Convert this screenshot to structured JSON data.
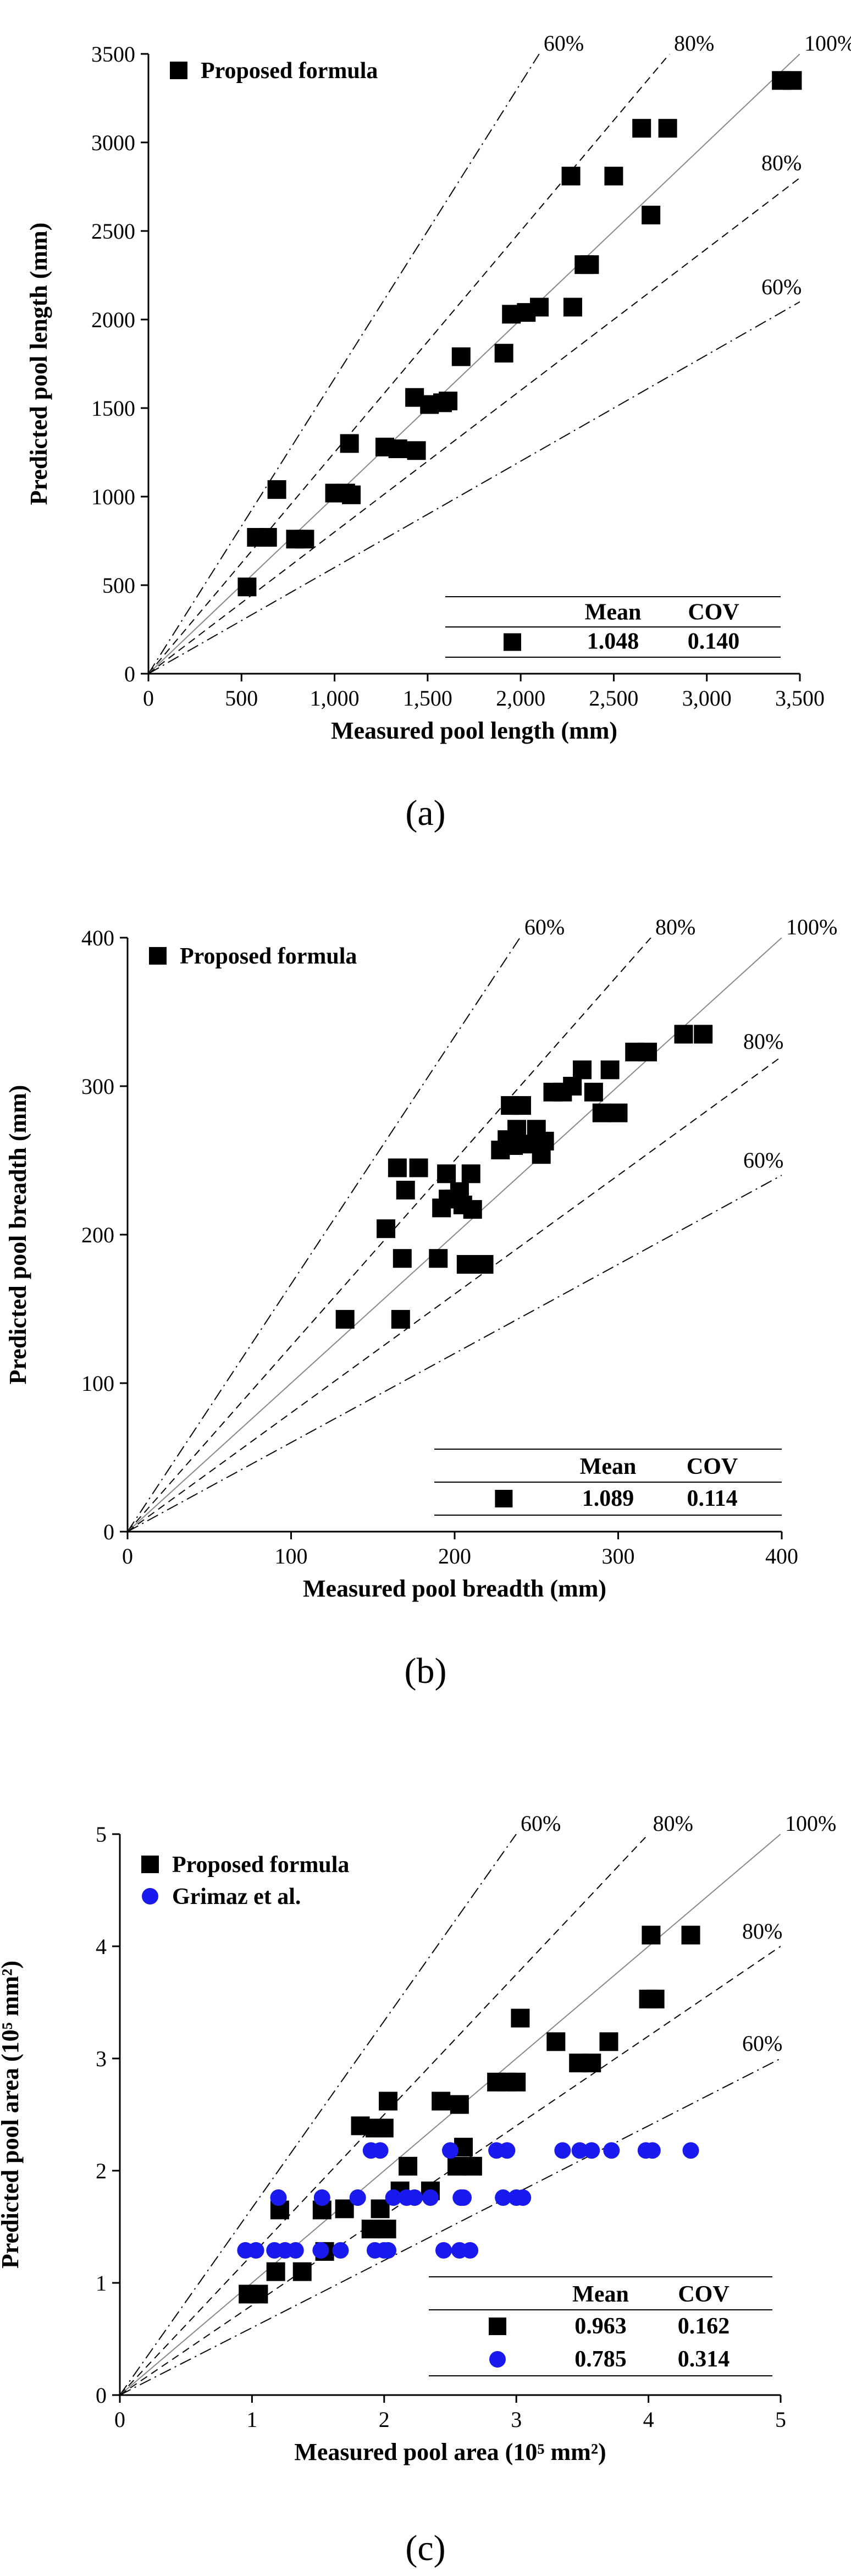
{
  "chart_data": [
    {
      "id": "a",
      "type": "scatter",
      "panel_label": "(a)",
      "xlabel": "Measured pool length (mm)",
      "ylabel": "Predicted pool length (mm)",
      "xlim": [
        0,
        3500
      ],
      "ylim": [
        0,
        3500
      ],
      "xticks": [
        0,
        500,
        1000,
        1500,
        2000,
        2500,
        3000,
        3500
      ],
      "xtick_labels": [
        "0",
        "500",
        "1,000",
        "1,500",
        "2,000",
        "2,500",
        "3,000",
        "3,500"
      ],
      "yticks": [
        0,
        500,
        1000,
        1500,
        2000,
        2500,
        3000,
        3500
      ],
      "ytick_labels": [
        "0",
        "500",
        "1000",
        "1500",
        "2000",
        "2500",
        "3000",
        "3500"
      ],
      "reference_lines": [
        {
          "label": "60%",
          "slope": 1.667,
          "style": "dashdot"
        },
        {
          "label": "80%",
          "slope": 1.25,
          "style": "dashed"
        },
        {
          "label": "100%",
          "slope": 1.0,
          "style": "solid"
        },
        {
          "label": "80%",
          "slope": 0.8,
          "style": "dashed"
        },
        {
          "label": "60%",
          "slope": 0.6,
          "style": "dashdot"
        }
      ],
      "series": [
        {
          "name": "Proposed formula",
          "marker": "square",
          "color": "#000000",
          "points": [
            [
              530,
              490
            ],
            [
              580,
              770
            ],
            [
              640,
              770
            ],
            [
              690,
              1040
            ],
            [
              790,
              760
            ],
            [
              840,
              760
            ],
            [
              1000,
              1020
            ],
            [
              1060,
              1020
            ],
            [
              1080,
              1300
            ],
            [
              1090,
              1010
            ],
            [
              1270,
              1280
            ],
            [
              1340,
              1270
            ],
            [
              1430,
              1560
            ],
            [
              1440,
              1260
            ],
            [
              1510,
              1520
            ],
            [
              1580,
              1530
            ],
            [
              1610,
              1540
            ],
            [
              1680,
              1790
            ],
            [
              1910,
              1810
            ],
            [
              1950,
              2030
            ],
            [
              2030,
              2040
            ],
            [
              2100,
              2070
            ],
            [
              2270,
              2810
            ],
            [
              2280,
              2070
            ],
            [
              2340,
              2310
            ],
            [
              2370,
              2310
            ],
            [
              2500,
              2810
            ],
            [
              2650,
              3080
            ],
            [
              2700,
              2590
            ],
            [
              2790,
              3080
            ],
            [
              3400,
              3350
            ],
            [
              3460,
              3350
            ]
          ]
        }
      ],
      "stats_table": {
        "headers": [
          "Mean",
          "COV"
        ],
        "rows": [
          {
            "marker": "square",
            "color": "#000000",
            "mean": "1.048",
            "cov": "0.140"
          }
        ]
      }
    },
    {
      "id": "b",
      "type": "scatter",
      "panel_label": "(b)",
      "xlabel": "Measured pool breadth (mm)",
      "ylabel": "Predicted pool breadth (mm)",
      "xlim": [
        0,
        400
      ],
      "ylim": [
        0,
        400
      ],
      "xticks": [
        0,
        100,
        200,
        300,
        400
      ],
      "xtick_labels": [
        "0",
        "100",
        "200",
        "300",
        "400"
      ],
      "yticks": [
        0,
        100,
        200,
        300,
        400
      ],
      "ytick_labels": [
        "0",
        "100",
        "200",
        "300",
        "400"
      ],
      "reference_lines": [
        {
          "label": "60%",
          "slope": 1.667,
          "style": "dashdot"
        },
        {
          "label": "80%",
          "slope": 1.25,
          "style": "dashed"
        },
        {
          "label": "100%",
          "slope": 1.0,
          "style": "solid"
        },
        {
          "label": "80%",
          "slope": 0.8,
          "style": "dashed"
        },
        {
          "label": "60%",
          "slope": 0.6,
          "style": "dashdot"
        }
      ],
      "series": [
        {
          "name": "Proposed formula",
          "marker": "square",
          "color": "#000000",
          "points": [
            [
              133,
              143
            ],
            [
              158,
              204
            ],
            [
              165,
              245
            ],
            [
              167,
              143
            ],
            [
              168,
              184
            ],
            [
              170,
              230
            ],
            [
              178,
              245
            ],
            [
              190,
              184
            ],
            [
              192,
              218
            ],
            [
              195,
              241
            ],
            [
              196,
              224
            ],
            [
              200,
              224
            ],
            [
              203,
              229
            ],
            [
              205,
              220
            ],
            [
              207,
              180
            ],
            [
              210,
              241
            ],
            [
              211,
              217
            ],
            [
              218,
              180
            ],
            [
              228,
              257
            ],
            [
              232,
              264
            ],
            [
              234,
              287
            ],
            [
              236,
              260
            ],
            [
              238,
              271
            ],
            [
              241,
              287
            ],
            [
              247,
              261
            ],
            [
              250,
              271
            ],
            [
              253,
              254
            ],
            [
              255,
              263
            ],
            [
              260,
              296
            ],
            [
              266,
              296
            ],
            [
              272,
              300
            ],
            [
              278,
              311
            ],
            [
              285,
              296
            ],
            [
              290,
              282
            ],
            [
              295,
              311
            ],
            [
              300,
              282
            ],
            [
              310,
              323
            ],
            [
              318,
              323
            ],
            [
              340,
              335
            ],
            [
              352,
              335
            ]
          ]
        }
      ],
      "stats_table": {
        "headers": [
          "Mean",
          "COV"
        ],
        "rows": [
          {
            "marker": "square",
            "color": "#000000",
            "mean": "1.089",
            "cov": "0.114"
          }
        ]
      }
    },
    {
      "id": "c",
      "type": "scatter",
      "panel_label": "(c)",
      "xlabel": "Measured pool area (10⁵ mm²)",
      "ylabel": "Predicted pool area (10⁵ mm²)",
      "xlim": [
        0,
        5
      ],
      "ylim": [
        0,
        5
      ],
      "xticks": [
        0,
        1,
        2,
        3,
        4,
        5
      ],
      "xtick_labels": [
        "0",
        "1",
        "2",
        "3",
        "4",
        "5"
      ],
      "yticks": [
        0,
        1,
        2,
        3,
        4,
        5
      ],
      "ytick_labels": [
        "0",
        "1",
        "2",
        "3",
        "4",
        "5"
      ],
      "reference_lines": [
        {
          "label": "60%",
          "slope": 1.667,
          "style": "dashdot"
        },
        {
          "label": "80%",
          "slope": 1.25,
          "style": "dashed"
        },
        {
          "label": "100%",
          "slope": 1.0,
          "style": "solid"
        },
        {
          "label": "80%",
          "slope": 0.8,
          "style": "dashed"
        },
        {
          "label": "60%",
          "slope": 0.6,
          "style": "dashdot"
        }
      ],
      "series": [
        {
          "name": "Proposed formula",
          "marker": "square",
          "color": "#000000",
          "points": [
            [
              0.97,
              0.9
            ],
            [
              1.05,
              0.9
            ],
            [
              1.18,
              1.1
            ],
            [
              1.21,
              1.65
            ],
            [
              1.38,
              1.1
            ],
            [
              1.55,
              1.28
            ],
            [
              1.53,
              1.65
            ],
            [
              1.7,
              1.66
            ],
            [
              1.82,
              2.4
            ],
            [
              1.9,
              1.48
            ],
            [
              1.93,
              2.38
            ],
            [
              1.97,
              1.66
            ],
            [
              2.0,
              2.38
            ],
            [
              2.02,
              1.48
            ],
            [
              2.03,
              2.62
            ],
            [
              2.12,
              1.82
            ],
            [
              2.18,
              2.04
            ],
            [
              2.35,
              1.82
            ],
            [
              2.43,
              2.62
            ],
            [
              2.55,
              2.04
            ],
            [
              2.57,
              2.59
            ],
            [
              2.6,
              2.21
            ],
            [
              2.67,
              2.04
            ],
            [
              2.85,
              2.79
            ],
            [
              2.93,
              2.79
            ],
            [
              3.0,
              2.79
            ],
            [
              3.03,
              3.36
            ],
            [
              3.3,
              3.15
            ],
            [
              3.47,
              2.96
            ],
            [
              3.57,
              2.96
            ],
            [
              3.7,
              3.15
            ],
            [
              4.0,
              3.53
            ],
            [
              4.02,
              4.1
            ],
            [
              4.05,
              3.53
            ],
            [
              4.32,
              4.1
            ]
          ]
        },
        {
          "name": "Grimaz et al.",
          "marker": "circle",
          "color": "#1a1aee",
          "points": [
            [
              0.95,
              1.29
            ],
            [
              1.03,
              1.29
            ],
            [
              1.17,
              1.29
            ],
            [
              1.2,
              1.76
            ],
            [
              1.25,
              1.29
            ],
            [
              1.33,
              1.29
            ],
            [
              1.52,
              1.29
            ],
            [
              1.53,
              1.76
            ],
            [
              1.67,
              1.29
            ],
            [
              1.8,
              1.76
            ],
            [
              1.9,
              2.18
            ],
            [
              1.93,
              1.29
            ],
            [
              1.97,
              2.18
            ],
            [
              2.0,
              1.29
            ],
            [
              2.03,
              1.29
            ],
            [
              2.07,
              1.76
            ],
            [
              2.17,
              1.76
            ],
            [
              2.23,
              1.76
            ],
            [
              2.35,
              1.76
            ],
            [
              2.45,
              1.29
            ],
            [
              2.5,
              2.18
            ],
            [
              2.57,
              1.29
            ],
            [
              2.58,
              1.76
            ],
            [
              2.6,
              1.76
            ],
            [
              2.65,
              1.29
            ],
            [
              2.85,
              2.18
            ],
            [
              2.9,
              1.76
            ],
            [
              2.93,
              2.18
            ],
            [
              3.0,
              1.76
            ],
            [
              3.05,
              1.76
            ],
            [
              3.35,
              2.18
            ],
            [
              3.48,
              2.18
            ],
            [
              3.57,
              2.18
            ],
            [
              3.72,
              2.18
            ],
            [
              3.98,
              2.18
            ],
            [
              4.03,
              2.18
            ],
            [
              4.32,
              2.18
            ]
          ]
        }
      ],
      "stats_table": {
        "headers": [
          "Mean",
          "COV"
        ],
        "rows": [
          {
            "marker": "square",
            "color": "#000000",
            "mean": "0.963",
            "cov": "0.162"
          },
          {
            "marker": "circle",
            "color": "#1a1aee",
            "mean": "0.785",
            "cov": "0.314"
          }
        ]
      }
    }
  ]
}
